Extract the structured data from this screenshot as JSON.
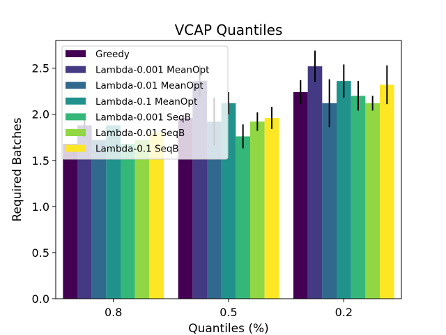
{
  "chart_data": {
    "type": "bar",
    "title": "VCAP Quantiles",
    "xlabel": "Quantiles (%)",
    "ylabel": "Required Batches",
    "ylim": [
      0,
      2.8
    ],
    "yticks": [
      "0.0",
      "0.5",
      "1.0",
      "1.5",
      "2.0",
      "2.5"
    ],
    "ytick_values": [
      0,
      0.5,
      1.0,
      1.5,
      2.0,
      2.5
    ],
    "categories": [
      "0.8",
      "0.5",
      "0.2"
    ],
    "legend_position": "top-left",
    "grid": false,
    "series": [
      {
        "name": "Greedy",
        "color": "#440154",
        "values": [
          1.68,
          1.96,
          2.24
        ],
        "errors": [
          0.0,
          0.0,
          0.13
        ]
      },
      {
        "name": "Lambda-0.001 MeanOpt",
        "color": "#443983",
        "values": [
          1.88,
          2.36,
          2.52
        ],
        "errors": [
          0.13,
          0.17,
          0.17
        ]
      },
      {
        "name": "Lambda-0.01 MeanOpt",
        "color": "#31688e",
        "values": [
          1.72,
          1.92,
          2.12
        ],
        "errors": [
          0.0,
          0.26,
          0.26
        ]
      },
      {
        "name": "Lambda-0.1 MeanOpt",
        "color": "#21918c",
        "values": [
          1.88,
          2.12,
          2.36
        ],
        "errors": [
          0.0,
          0.12,
          0.18
        ]
      },
      {
        "name": "Lambda-0.001 SeqB",
        "color": "#35b779",
        "values": [
          1.68,
          1.76,
          2.2
        ],
        "errors": [
          0.0,
          0.13,
          0.16
        ]
      },
      {
        "name": "Lambda-0.01 SeqB",
        "color": "#90d743",
        "values": [
          1.72,
          1.92,
          2.12
        ],
        "errors": [
          0.0,
          0.1,
          0.08
        ]
      },
      {
        "name": "Lambda-0.1 SeqB",
        "color": "#fde725",
        "values": [
          1.8,
          1.96,
          2.32
        ],
        "errors": [
          0.0,
          0.12,
          0.21
        ]
      }
    ]
  }
}
